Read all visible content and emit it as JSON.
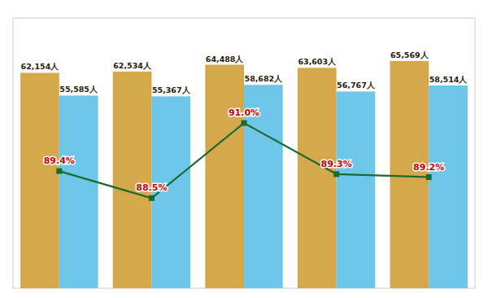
{
  "chart_data": {
    "type": "bar",
    "categories": [
      null,
      null,
      null,
      null,
      null
    ],
    "series": [
      {
        "color": "#D4A84B",
        "values": [
          62154,
          62534,
          64488,
          63603,
          65569
        ],
        "value_labels": [
          "62,154人",
          "62,534人",
          "64,488人",
          "63,603人",
          "65,569人"
        ]
      },
      {
        "color": "#6EC6E8",
        "values": [
          55585,
          55367,
          58682,
          56767,
          58514
        ],
        "value_labels": [
          "55,585人",
          "55,367人",
          "58,682人",
          "56,767人",
          "58,514人"
        ]
      },
      {
        "type": "line",
        "axis": "y2",
        "color": "#1A6B2F",
        "marker": "square",
        "values": [
          89.4,
          88.5,
          91.0,
          89.3,
          89.2
        ],
        "value_labels": [
          "89.4%",
          "88.5%",
          "91.0%",
          "89.3%",
          "89.2%"
        ]
      }
    ],
    "ylim": [
      0,
      78000
    ],
    "y2lim": [
      85.5,
      94.5
    ],
    "data_labels": true,
    "tick_labels": false,
    "grid": false
  }
}
